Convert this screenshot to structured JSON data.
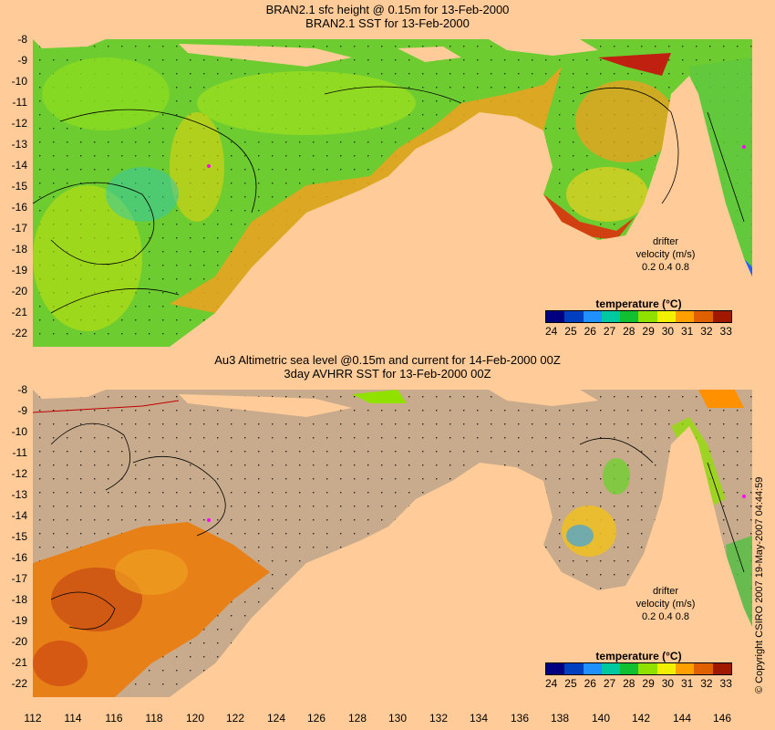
{
  "top_panel": {
    "title_line1": "BRAN2.1 sfc height @ 0.15m for 13-Feb-2000",
    "title_line2": "BRAN2.1 SST for 13-Feb-2000",
    "y_ticks": [
      "-8",
      "-9",
      "-10",
      "-11",
      "-12",
      "-13",
      "-14",
      "-15",
      "-16",
      "-17",
      "-18",
      "-19",
      "-20",
      "-21",
      "-22"
    ]
  },
  "bottom_panel": {
    "title_line1": "Au3 Altimetric sea level  @0.15m and current for 14-Feb-2000 00Z",
    "title_line2": "3day AVHRR SST for 13-Feb-2000 00Z",
    "y_ticks": [
      "-8",
      "-9",
      "-10",
      "-11",
      "-12",
      "-13",
      "-14",
      "-15",
      "-16",
      "-17",
      "-18",
      "-19",
      "-20",
      "-21",
      "-22"
    ]
  },
  "x_ticks": [
    "112",
    "114",
    "116",
    "118",
    "120",
    "122",
    "124",
    "126",
    "128",
    "130",
    "132",
    "134",
    "136",
    "138",
    "140",
    "142",
    "144",
    "146"
  ],
  "legend": {
    "title": "temperature  (°C)",
    "ticks": [
      "24",
      "25",
      "26",
      "27",
      "28",
      "29",
      "30",
      "31",
      "32",
      "33"
    ],
    "colors": [
      "#000080",
      "#0040c0",
      "#2090ff",
      "#00c8a0",
      "#10c030",
      "#90e000",
      "#f0f000",
      "#ffa000",
      "#e06000",
      "#a01800"
    ]
  },
  "drifter": {
    "line1": "drifter",
    "line2": "velocity (m/s)",
    "line3": "0.2  0.4  0.8"
  },
  "copyright": "© Copyright CSIRO 2007  19-May-2007 04:44:59",
  "colors": {
    "land": "#ffcc99",
    "masked_ocean": "#c8aa8c",
    "warm": "#e87010",
    "ocean_green": "#70d030"
  }
}
